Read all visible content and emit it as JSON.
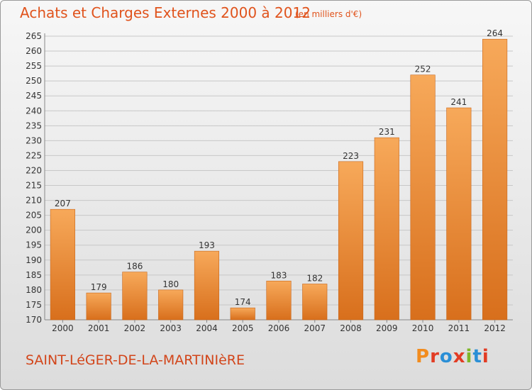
{
  "header": {
    "title": "Achats et Charges Externes 2000 à 2012",
    "subtitle": "(en milliers d'€)"
  },
  "footer": {
    "place": "SAINT-LéGER-DE-LA-MARTINIèRE",
    "logo_text": "Proxiti",
    "logo_colors": [
      "#f28c1e",
      "#e23c24",
      "#2a8fd6",
      "#e23c24",
      "#7fb628",
      "#2a8fd6",
      "#e23c24"
    ]
  },
  "colors": {
    "bar_top": "#f7a95a",
    "bar_bottom": "#d86f1c",
    "bar_stroke": "#c8661a",
    "grid": "#c7c7c7",
    "title": "#e0531c"
  },
  "chart_data": {
    "type": "bar",
    "categories": [
      "2000",
      "2001",
      "2002",
      "2003",
      "2004",
      "2005",
      "2006",
      "2007",
      "2008",
      "2009",
      "2010",
      "2011",
      "2012"
    ],
    "values": [
      207,
      179,
      186,
      180,
      193,
      174,
      183,
      182,
      223,
      231,
      252,
      241,
      264
    ],
    "ylim": [
      170,
      265
    ],
    "yticks": [
      170,
      175,
      180,
      185,
      190,
      195,
      200,
      205,
      210,
      215,
      220,
      225,
      230,
      235,
      240,
      245,
      250,
      255,
      260,
      265
    ],
    "grid": true,
    "data_labels": true
  }
}
